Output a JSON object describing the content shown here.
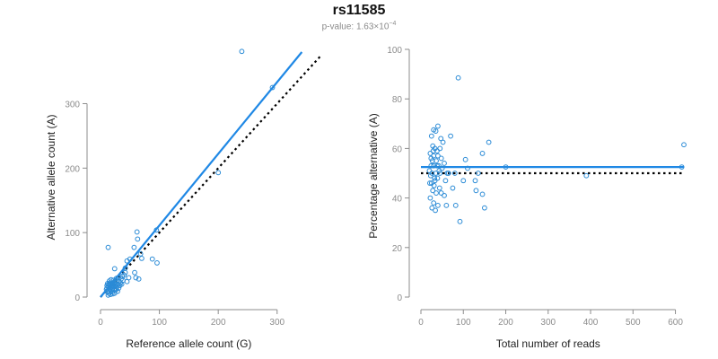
{
  "title": "rs11585",
  "subtitle": {
    "prefix": "p-value: 1.63×10",
    "exponent": "−4"
  },
  "colors": {
    "points": "#2b8bd6",
    "fit": "#1f88e5",
    "reference": "#000000",
    "axis": "#8c8c8c",
    "tick_text": "#8c8c8c",
    "label_text": "#222222"
  },
  "chart_data": [
    {
      "type": "scatter",
      "xlabel": "Reference allele count (G)",
      "ylabel": "Alternative allele count (A)",
      "xlim": [
        0,
        340
      ],
      "ylim": [
        0,
        380
      ],
      "xticks": [
        0,
        100,
        200,
        300
      ],
      "yticks": [
        0,
        100,
        200,
        300
      ],
      "grid": false,
      "fit_line": {
        "x": [
          0,
          342
        ],
        "y": [
          0,
          380
        ]
      },
      "reference_line": {
        "x": [
          0,
          375
        ],
        "y": [
          0,
          375
        ],
        "style": "dotted"
      },
      "points": [
        [
          240,
          381
        ],
        [
          292,
          325
        ],
        [
          200,
          193
        ],
        [
          13,
          77
        ],
        [
          62,
          101
        ],
        [
          95,
          104
        ],
        [
          63,
          90
        ],
        [
          57,
          77
        ],
        [
          68,
          67
        ],
        [
          70,
          60
        ],
        [
          50,
          59
        ],
        [
          45,
          56
        ],
        [
          88,
          59
        ],
        [
          96,
          53
        ],
        [
          42,
          45
        ],
        [
          58,
          38
        ],
        [
          24,
          44
        ],
        [
          60,
          30
        ],
        [
          65,
          28
        ],
        [
          37,
          32
        ],
        [
          30,
          30
        ],
        [
          48,
          30
        ],
        [
          38,
          26
        ],
        [
          45,
          24
        ],
        [
          34,
          22
        ],
        [
          28,
          25
        ],
        [
          26,
          20
        ],
        [
          22,
          18
        ],
        [
          20,
          22
        ],
        [
          18,
          15
        ],
        [
          16,
          12
        ],
        [
          14,
          10
        ],
        [
          12,
          8
        ],
        [
          15,
          18
        ],
        [
          19,
          12
        ],
        [
          21,
          14
        ],
        [
          17,
          20
        ],
        [
          13,
          16
        ],
        [
          25,
          17
        ],
        [
          23,
          11
        ],
        [
          11,
          14
        ],
        [
          18,
          9
        ],
        [
          24,
          24
        ],
        [
          20,
          8
        ],
        [
          16,
          22
        ],
        [
          28,
          16
        ],
        [
          22,
          26
        ],
        [
          30,
          20
        ],
        [
          26,
          13
        ],
        [
          14,
          20
        ],
        [
          19,
          17
        ],
        [
          32,
          24
        ],
        [
          35,
          28
        ],
        [
          40,
          34
        ],
        [
          42,
          38
        ],
        [
          27,
          29
        ],
        [
          18,
          27
        ],
        [
          12,
          21
        ],
        [
          10,
          12
        ],
        [
          31,
          14
        ],
        [
          21,
          5
        ],
        [
          17,
          4
        ],
        [
          13,
          3
        ],
        [
          24,
          6
        ],
        [
          15,
          25
        ],
        [
          29,
          9
        ],
        [
          33,
          18
        ],
        [
          22,
          21
        ],
        [
          16,
          16
        ],
        [
          20,
          19
        ],
        [
          25,
          23
        ],
        [
          11,
          18
        ],
        [
          27,
          12
        ],
        [
          36,
          20
        ],
        [
          14,
          6
        ]
      ]
    },
    {
      "type": "scatter",
      "xlabel": "Total number of reads",
      "ylabel": "Percentage alternative (A)",
      "xlim": [
        0,
        620
      ],
      "ylim": [
        0,
        100
      ],
      "xticks": [
        0,
        100,
        200,
        300,
        400,
        500,
        600
      ],
      "yticks": [
        0,
        20,
        40,
        60,
        80,
        100
      ],
      "grid": false,
      "fit_line": {
        "x": [
          0,
          620
        ],
        "y": [
          52.5,
          52.5
        ]
      },
      "reference_line": {
        "x": [
          0,
          620
        ],
        "y": [
          50,
          50
        ],
        "style": "dotted"
      },
      "points": [
        [
          88,
          88.5
        ],
        [
          620,
          61.5
        ],
        [
          40,
          69
        ],
        [
          30,
          67.5
        ],
        [
          35,
          67
        ],
        [
          25,
          65
        ],
        [
          52,
          62.5
        ],
        [
          160,
          62.5
        ],
        [
          70,
          65
        ],
        [
          45,
          60
        ],
        [
          28,
          61
        ],
        [
          33,
          60
        ],
        [
          38,
          59
        ],
        [
          22,
          58
        ],
        [
          30,
          57
        ],
        [
          40,
          57
        ],
        [
          48,
          56
        ],
        [
          27,
          55
        ],
        [
          36,
          55
        ],
        [
          105,
          55.5
        ],
        [
          145,
          58
        ],
        [
          55,
          54
        ],
        [
          24,
          53
        ],
        [
          30,
          53
        ],
        [
          42,
          53
        ],
        [
          50,
          52
        ],
        [
          110,
          52
        ],
        [
          200,
          52.5
        ],
        [
          615,
          52.5
        ],
        [
          20,
          51
        ],
        [
          26,
          50
        ],
        [
          35,
          50
        ],
        [
          45,
          50
        ],
        [
          65,
          50
        ],
        [
          80,
          50
        ],
        [
          135,
          50
        ],
        [
          23,
          49
        ],
        [
          32,
          48
        ],
        [
          39,
          48
        ],
        [
          58,
          47
        ],
        [
          100,
          47
        ],
        [
          128,
          47
        ],
        [
          390,
          49
        ],
        [
          25,
          46
        ],
        [
          31,
          45
        ],
        [
          44,
          44
        ],
        [
          75,
          44
        ],
        [
          28,
          43
        ],
        [
          36,
          42
        ],
        [
          48,
          42
        ],
        [
          55,
          41
        ],
        [
          145,
          41.5
        ],
        [
          130,
          43
        ],
        [
          22,
          40
        ],
        [
          30,
          38
        ],
        [
          40,
          37
        ],
        [
          60,
          37
        ],
        [
          82,
          37
        ],
        [
          26,
          36
        ],
        [
          34,
          35
        ],
        [
          150,
          36
        ],
        [
          92,
          30.5
        ],
        [
          21,
          46
        ],
        [
          38,
          53
        ],
        [
          43,
          51
        ],
        [
          29,
          59
        ],
        [
          47,
          64
        ],
        [
          33,
          47
        ],
        [
          24,
          56
        ],
        [
          62,
          50
        ]
      ]
    }
  ]
}
